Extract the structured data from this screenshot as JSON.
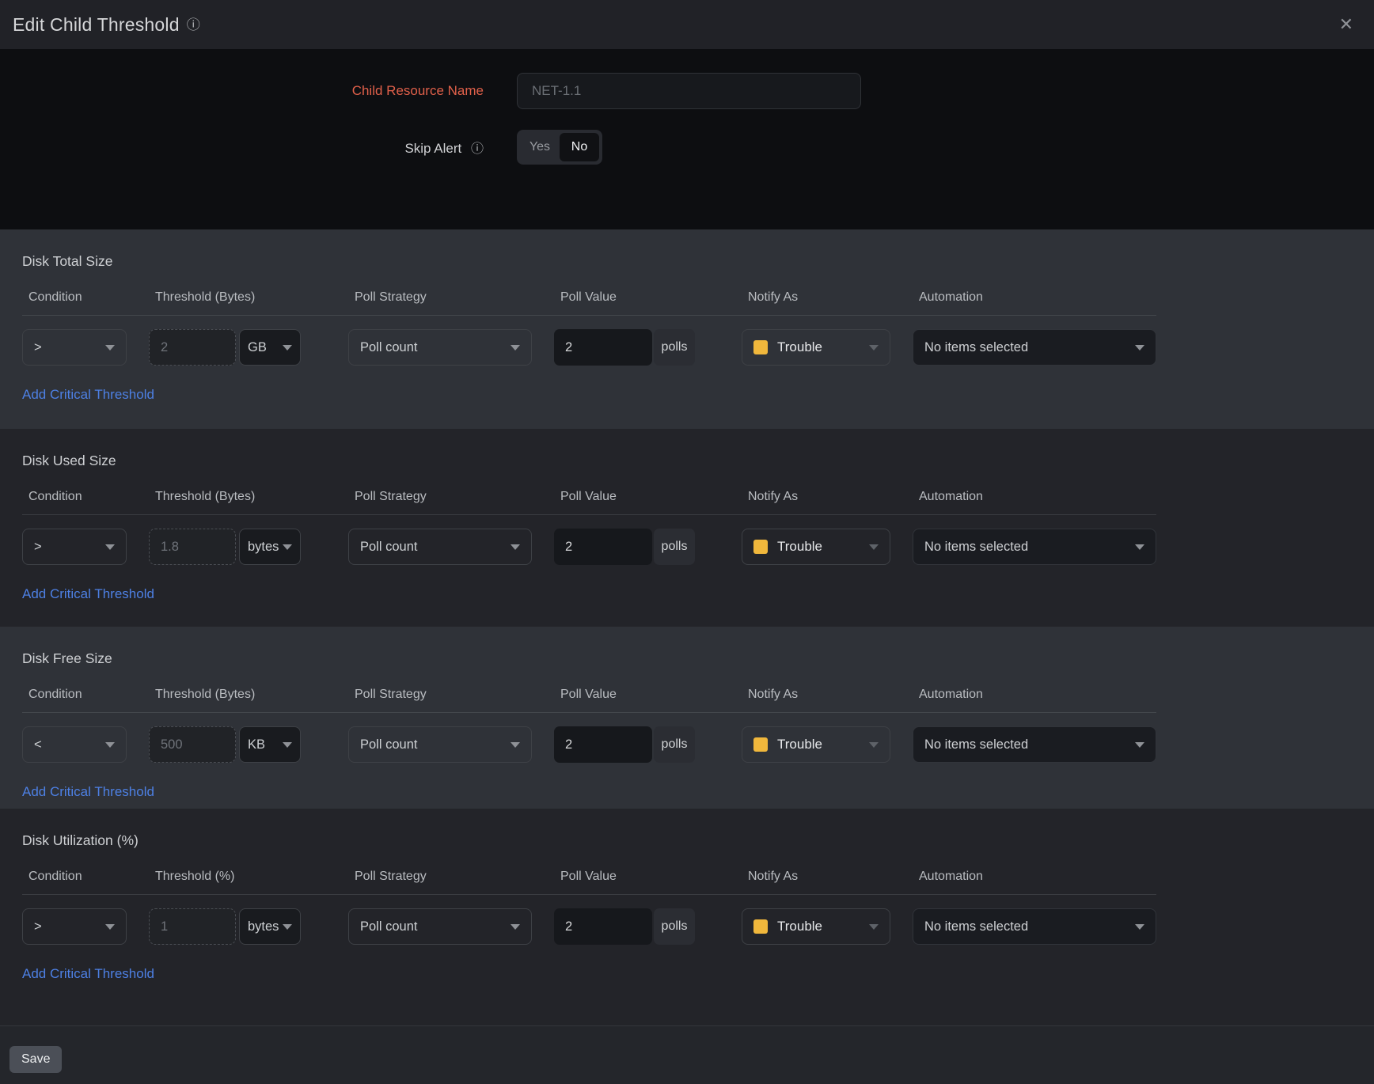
{
  "modal": {
    "title": "Edit Child Threshold"
  },
  "form": {
    "resource_name_label": "Child Resource Name",
    "resource_name_placeholder": "NET-1.1",
    "skip_alert_label": "Skip Alert",
    "toggle": {
      "yes": "Yes",
      "no": "No",
      "selected": "No"
    }
  },
  "table_headers": {
    "condition": "Condition",
    "poll_strategy": "Poll Strategy",
    "poll_value": "Poll Value",
    "notify_as": "Notify As",
    "automation": "Automation"
  },
  "sections": [
    {
      "title": "Disk Total Size",
      "threshold_header": "Threshold (Bytes)",
      "condition": ">",
      "threshold_value": "2",
      "unit": "GB",
      "poll_strategy": "Poll count",
      "poll_value": "2",
      "poll_unit": "polls",
      "notify_as": "Trouble",
      "automation": "No items selected",
      "add_link": "Add Critical Threshold"
    },
    {
      "title": "Disk Used Size",
      "threshold_header": "Threshold (Bytes)",
      "condition": ">",
      "threshold_value": "1.8",
      "unit": "bytes",
      "poll_strategy": "Poll count",
      "poll_value": "2",
      "poll_unit": "polls",
      "notify_as": "Trouble",
      "automation": "No items selected",
      "add_link": "Add Critical Threshold"
    },
    {
      "title": "Disk Free Size",
      "threshold_header": "Threshold (Bytes)",
      "condition": "<",
      "threshold_value": "500",
      "unit": "KB",
      "poll_strategy": "Poll count",
      "poll_value": "2",
      "poll_unit": "polls",
      "notify_as": "Trouble",
      "automation": "No items selected",
      "add_link": "Add Critical Threshold"
    },
    {
      "title": "Disk Utilization (%)",
      "threshold_header": "Threshold (%)",
      "condition": ">",
      "threshold_value": "1",
      "unit": "bytes",
      "poll_strategy": "Poll count",
      "poll_value": "2",
      "poll_unit": "polls",
      "notify_as": "Trouble",
      "automation": "No items selected",
      "add_link": "Add Critical Threshold"
    }
  ],
  "footer": {
    "save_label": "Save"
  },
  "icons": {
    "close": "✕",
    "info": "ⓘ"
  },
  "colors": {
    "accent_label": "#e0604a",
    "link_blue": "#4d80e4",
    "notify_trouble_yellow": "#f0b73c"
  }
}
